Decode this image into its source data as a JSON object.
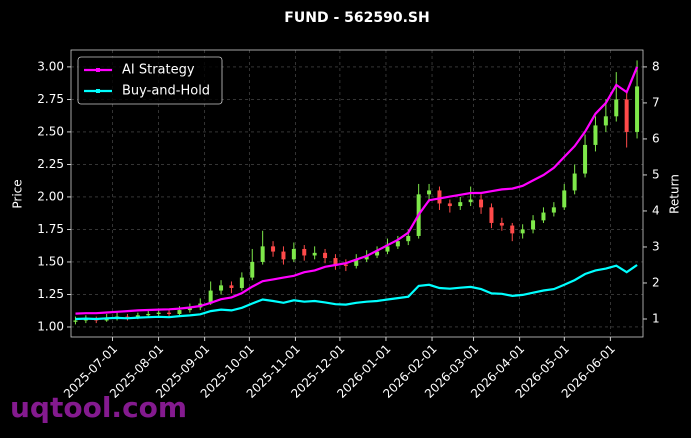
{
  "chart_data": {
    "type": "candlestick",
    "title": "FUND - 562590.SH",
    "ylabel": "Price",
    "y2label": "Return",
    "watermark": "uqtool.com",
    "legend": "upper left",
    "grid": true,
    "up_color": "#7ee84a",
    "down_color": "#ff4a4a",
    "x": [
      "2025-06-06",
      "2025-06-13",
      "2025-06-20",
      "2025-06-27",
      "2025-07-04",
      "2025-07-11",
      "2025-07-18",
      "2025-07-25",
      "2025-08-01",
      "2025-08-08",
      "2025-08-15",
      "2025-08-22",
      "2025-08-29",
      "2025-09-05",
      "2025-09-12",
      "2025-09-19",
      "2025-09-26",
      "2025-10-03",
      "2025-10-10",
      "2025-10-17",
      "2025-10-24",
      "2025-10-31",
      "2025-11-07",
      "2025-11-14",
      "2025-11-21",
      "2025-11-28",
      "2025-12-05",
      "2025-12-12",
      "2025-12-19",
      "2025-12-26",
      "2026-01-02",
      "2026-01-09",
      "2026-01-16",
      "2026-01-23",
      "2026-01-30",
      "2026-02-06",
      "2026-02-13",
      "2026-02-20",
      "2026-02-27",
      "2026-03-06",
      "2026-03-13",
      "2026-03-20",
      "2026-03-27",
      "2026-04-03",
      "2026-04-10",
      "2026-04-17",
      "2026-04-24",
      "2026-05-01",
      "2026-05-08",
      "2026-05-15",
      "2026-05-22",
      "2026-05-29",
      "2026-06-05",
      "2026-06-12",
      "2026-06-19"
    ],
    "open": [
      1.04,
      1.05,
      1.06,
      1.05,
      1.07,
      1.08,
      1.07,
      1.09,
      1.1,
      1.11,
      1.1,
      1.13,
      1.15,
      1.18,
      1.28,
      1.32,
      1.3,
      1.38,
      1.5,
      1.62,
      1.58,
      1.52,
      1.6,
      1.55,
      1.57,
      1.53,
      1.48,
      1.47,
      1.52,
      1.55,
      1.58,
      1.62,
      1.66,
      1.7,
      2.02,
      2.05,
      1.95,
      1.93,
      1.96,
      1.98,
      1.92,
      1.8,
      1.78,
      1.72,
      1.75,
      1.82,
      1.88,
      1.92,
      2.05,
      2.18,
      2.4,
      2.55,
      2.62,
      2.75,
      2.5
    ],
    "high": [
      1.08,
      1.09,
      1.08,
      1.1,
      1.11,
      1.1,
      1.11,
      1.13,
      1.14,
      1.13,
      1.16,
      1.18,
      1.22,
      1.35,
      1.36,
      1.35,
      1.42,
      1.6,
      1.74,
      1.66,
      1.62,
      1.65,
      1.63,
      1.62,
      1.6,
      1.56,
      1.52,
      1.56,
      1.59,
      1.62,
      1.68,
      1.7,
      1.75,
      2.1,
      2.1,
      2.08,
      1.98,
      2.0,
      2.08,
      2.02,
      1.95,
      1.84,
      1.8,
      1.79,
      1.86,
      1.92,
      1.96,
      2.1,
      2.25,
      2.48,
      2.62,
      2.75,
      2.96,
      2.8,
      3.05
    ],
    "low": [
      1.02,
      1.03,
      1.03,
      1.04,
      1.05,
      1.05,
      1.06,
      1.07,
      1.08,
      1.08,
      1.08,
      1.11,
      1.13,
      1.17,
      1.25,
      1.26,
      1.28,
      1.36,
      1.48,
      1.54,
      1.48,
      1.5,
      1.51,
      1.52,
      1.49,
      1.44,
      1.43,
      1.45,
      1.5,
      1.53,
      1.56,
      1.6,
      1.63,
      1.68,
      1.96,
      1.9,
      1.88,
      1.9,
      1.93,
      1.87,
      1.76,
      1.74,
      1.66,
      1.68,
      1.72,
      1.8,
      1.85,
      1.9,
      2.02,
      2.15,
      2.35,
      2.5,
      2.58,
      2.38,
      2.45
    ],
    "close": [
      1.05,
      1.06,
      1.05,
      1.07,
      1.08,
      1.07,
      1.09,
      1.1,
      1.11,
      1.1,
      1.13,
      1.15,
      1.18,
      1.28,
      1.32,
      1.3,
      1.38,
      1.5,
      1.62,
      1.58,
      1.52,
      1.6,
      1.55,
      1.57,
      1.53,
      1.48,
      1.47,
      1.52,
      1.55,
      1.58,
      1.62,
      1.66,
      1.7,
      2.02,
      2.05,
      1.95,
      1.93,
      1.96,
      1.98,
      1.92,
      1.8,
      1.78,
      1.72,
      1.75,
      1.82,
      1.88,
      1.92,
      2.05,
      2.18,
      2.4,
      2.55,
      2.62,
      2.75,
      2.5,
      2.85
    ],
    "series": [
      {
        "name": "AI Strategy",
        "color": "#ff00ff",
        "axis": "y2",
        "values": [
          1.15,
          1.16,
          1.16,
          1.18,
          1.2,
          1.22,
          1.24,
          1.25,
          1.26,
          1.27,
          1.29,
          1.32,
          1.36,
          1.45,
          1.55,
          1.6,
          1.72,
          1.9,
          2.05,
          2.1,
          2.15,
          2.2,
          2.3,
          2.35,
          2.45,
          2.5,
          2.55,
          2.65,
          2.75,
          2.9,
          3.05,
          3.2,
          3.4,
          3.9,
          4.3,
          4.35,
          4.4,
          4.45,
          4.5,
          4.5,
          4.55,
          4.6,
          4.62,
          4.7,
          4.85,
          5.0,
          5.2,
          5.5,
          5.8,
          6.2,
          6.7,
          7.0,
          7.5,
          7.3,
          8.0
        ]
      },
      {
        "name": "Buy-and-Hold",
        "color": "#00ffff",
        "axis": "y2",
        "values": [
          1.0,
          1.01,
          1.0,
          1.02,
          1.03,
          1.02,
          1.04,
          1.05,
          1.06,
          1.05,
          1.08,
          1.1,
          1.13,
          1.22,
          1.26,
          1.24,
          1.31,
          1.43,
          1.54,
          1.5,
          1.45,
          1.52,
          1.48,
          1.5,
          1.46,
          1.41,
          1.4,
          1.45,
          1.48,
          1.5,
          1.54,
          1.58,
          1.62,
          1.92,
          1.95,
          1.86,
          1.84,
          1.87,
          1.89,
          1.83,
          1.71,
          1.7,
          1.64,
          1.67,
          1.73,
          1.79,
          1.83,
          1.95,
          2.08,
          2.25,
          2.35,
          2.4,
          2.48,
          2.3,
          2.5
        ]
      }
    ],
    "xlim": [
      "2025-06-03",
      "2026-06-23"
    ],
    "xticks": [
      "2025-07-01",
      "2025-08-01",
      "2025-09-01",
      "2025-10-01",
      "2025-11-01",
      "2025-12-01",
      "2026-01-01",
      "2026-02-01",
      "2026-03-01",
      "2026-04-01",
      "2026-05-01",
      "2026-06-01"
    ],
    "ylim": [
      0.923,
      3.13
    ],
    "yticks": [
      {
        "value": 1,
        "label": "1.00"
      },
      {
        "value": 1.25,
        "label": "1.25"
      },
      {
        "value": 1.5,
        "label": "1.50"
      },
      {
        "value": 1.75,
        "label": "1.75"
      },
      {
        "value": 2,
        "label": "2.00"
      },
      {
        "value": 2.25,
        "label": "2.25"
      },
      {
        "value": 2.5,
        "label": "2.50"
      },
      {
        "value": 2.75,
        "label": "2.75"
      },
      {
        "value": 3,
        "label": "3.00"
      }
    ],
    "y2lim": [
      0.5,
      8.47
    ],
    "y2ticks": [
      1,
      2,
      3,
      4,
      5,
      6,
      7,
      8
    ]
  }
}
